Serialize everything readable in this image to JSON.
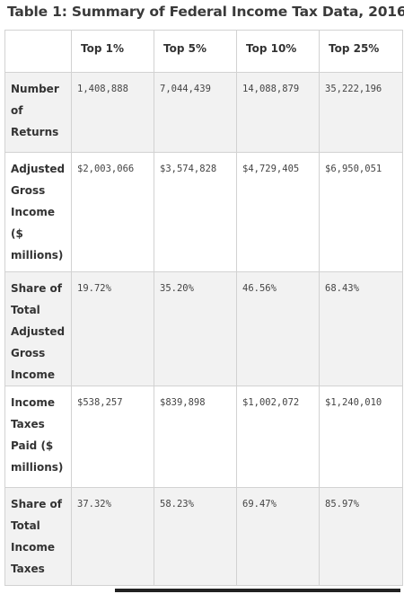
{
  "title": "Table 1: Summary of Federal Income Tax Data, 2016",
  "columns": [
    "",
    "Top 1%",
    "Top 5%",
    "Top 10%",
    "Top 25%"
  ],
  "rows": [
    {
      "label": "Number of Returns",
      "values": [
        "1,408,888",
        "7,044,439",
        "14,088,879",
        "35,222,196"
      ]
    },
    {
      "label": "Adjusted Gross Income ($ millions)",
      "values": [
        "$2,003,066",
        "$3,574,828",
        "$4,729,405",
        "$6,950,051"
      ]
    },
    {
      "label": "Share of Total Adjusted Gross Income",
      "values": [
        "19.72%",
        "35.20%",
        "46.56%",
        "68.43%"
      ]
    },
    {
      "label": "Income Taxes Paid ($ millions)",
      "values": [
        "$538,257",
        "$839,898",
        "$1,002,072",
        "$1,240,010"
      ]
    },
    {
      "label": "Share of Total Income Taxes",
      "values": [
        "37.32%",
        "58.23%",
        "69.47%",
        "85.97%"
      ]
    }
  ]
}
